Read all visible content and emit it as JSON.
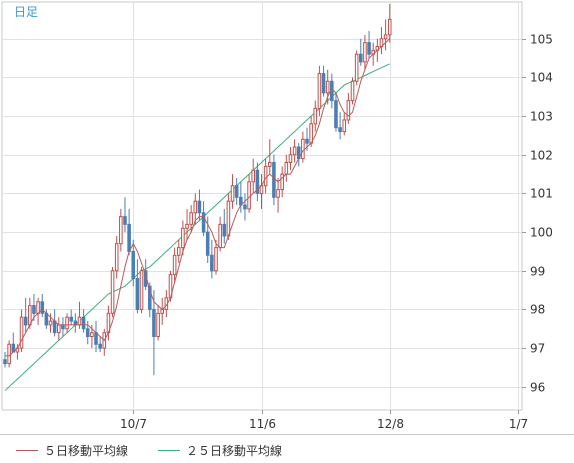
{
  "chart_data": {
    "type": "candlestick",
    "period_label": "日足",
    "ylim": [
      95.4,
      105.95
    ],
    "yticks": [
      96,
      97,
      98,
      99,
      100,
      101,
      102,
      103,
      104,
      105
    ],
    "xticks": [
      {
        "label": "10/7",
        "index": 31
      },
      {
        "label": "11/6",
        "index": 62
      },
      {
        "label": "12/8",
        "index": 93
      },
      {
        "label": "1/7",
        "index": 124
      }
    ],
    "legend": [
      {
        "name": "５日移動平均線",
        "color": "#b85a5a"
      },
      {
        "name": "２５日移動平均線",
        "color": "#3cae7c"
      }
    ],
    "colors": {
      "up": "#c0504d",
      "down": "#4a7fb5",
      "ma5": "#b85a5a",
      "ma25": "#3cae7c",
      "grid": "#e2e2e2",
      "axis": "#c8c8c8"
    },
    "candles": [
      [
        96.7,
        96.9,
        96.5,
        96.6
      ],
      [
        96.6,
        97.2,
        96.5,
        97.1
      ],
      [
        97.1,
        97.4,
        96.9,
        96.9
      ],
      [
        96.9,
        97.1,
        96.7,
        97.0
      ],
      [
        97.0,
        98.0,
        96.9,
        97.8
      ],
      [
        97.8,
        98.3,
        97.4,
        97.6
      ],
      [
        97.6,
        98.3,
        97.5,
        98.1
      ],
      [
        98.1,
        98.4,
        97.7,
        97.9
      ],
      [
        97.9,
        98.3,
        97.6,
        98.2
      ],
      [
        98.2,
        98.4,
        97.8,
        97.9
      ],
      [
        97.9,
        98.0,
        97.5,
        97.6
      ],
      [
        97.6,
        97.9,
        97.4,
        97.7
      ],
      [
        97.7,
        98.0,
        97.3,
        97.4
      ],
      [
        97.4,
        97.8,
        97.2,
        97.6
      ],
      [
        97.6,
        97.8,
        97.3,
        97.5
      ],
      [
        97.5,
        97.9,
        97.4,
        97.8
      ],
      [
        97.8,
        98.0,
        97.6,
        97.7
      ],
      [
        97.7,
        97.9,
        97.4,
        97.6
      ],
      [
        97.6,
        98.2,
        97.5,
        97.8
      ],
      [
        97.8,
        98.0,
        97.4,
        97.5
      ],
      [
        97.5,
        97.7,
        97.1,
        97.3
      ],
      [
        97.3,
        97.6,
        97.0,
        97.4
      ],
      [
        97.4,
        97.7,
        96.9,
        97.1
      ],
      [
        97.1,
        97.3,
        96.9,
        97.0
      ],
      [
        97.0,
        97.5,
        96.8,
        97.4
      ],
      [
        97.4,
        98.1,
        97.2,
        97.9
      ],
      [
        97.9,
        99.1,
        97.8,
        99.0
      ],
      [
        99.0,
        99.9,
        98.8,
        99.7
      ],
      [
        99.7,
        100.6,
        99.5,
        100.4
      ],
      [
        100.4,
        100.9,
        100.0,
        100.2
      ],
      [
        100.2,
        100.6,
        99.4,
        99.5
      ],
      [
        99.5,
        99.8,
        98.6,
        98.8
      ],
      [
        98.8,
        99.3,
        97.9,
        98.0
      ],
      [
        98.0,
        99.1,
        97.9,
        99.0
      ],
      [
        99.0,
        99.3,
        98.5,
        98.6
      ],
      [
        98.6,
        98.7,
        97.8,
        98.0
      ],
      [
        98.0,
        98.5,
        96.3,
        97.3
      ],
      [
        97.3,
        98.1,
        97.2,
        97.9
      ],
      [
        97.9,
        98.3,
        97.6,
        98.0
      ],
      [
        98.0,
        98.5,
        97.8,
        98.3
      ],
      [
        98.3,
        99.0,
        98.2,
        98.9
      ],
      [
        98.9,
        99.6,
        98.7,
        99.4
      ],
      [
        99.4,
        99.8,
        99.2,
        99.6
      ],
      [
        99.6,
        100.3,
        99.4,
        100.1
      ],
      [
        100.1,
        100.6,
        99.8,
        100.2
      ],
      [
        100.2,
        100.7,
        100.0,
        100.5
      ],
      [
        100.5,
        101.0,
        100.2,
        100.8
      ],
      [
        100.8,
        101.1,
        100.3,
        100.5
      ],
      [
        100.5,
        100.8,
        99.9,
        100.0
      ],
      [
        100.0,
        100.4,
        99.2,
        99.4
      ],
      [
        99.4,
        99.8,
        98.8,
        99.0
      ],
      [
        99.0,
        99.8,
        98.9,
        99.6
      ],
      [
        99.6,
        100.4,
        99.5,
        100.2
      ],
      [
        100.2,
        100.6,
        99.7,
        99.9
      ],
      [
        99.9,
        101.0,
        99.8,
        100.8
      ],
      [
        100.8,
        101.5,
        100.6,
        101.2
      ],
      [
        101.2,
        101.4,
        100.7,
        100.9
      ],
      [
        100.9,
        101.3,
        100.5,
        100.7
      ],
      [
        100.7,
        101.0,
        100.3,
        100.6
      ],
      [
        100.6,
        101.5,
        100.5,
        101.3
      ],
      [
        101.3,
        101.9,
        101.0,
        101.6
      ],
      [
        101.6,
        101.8,
        100.8,
        101.0
      ],
      [
        101.0,
        101.5,
        100.6,
        101.2
      ],
      [
        101.2,
        101.9,
        101.0,
        101.7
      ],
      [
        101.7,
        102.4,
        101.5,
        101.8
      ],
      [
        101.8,
        102.0,
        100.7,
        100.9
      ],
      [
        100.9,
        101.4,
        100.5,
        101.1
      ],
      [
        101.1,
        101.7,
        100.9,
        101.5
      ],
      [
        101.5,
        102.0,
        101.3,
        101.8
      ],
      [
        101.8,
        102.2,
        101.6,
        102.0
      ],
      [
        102.0,
        102.4,
        101.8,
        102.2
      ],
      [
        102.2,
        102.3,
        101.7,
        101.9
      ],
      [
        101.9,
        102.6,
        101.8,
        102.4
      ],
      [
        102.4,
        102.7,
        102.1,
        102.3
      ],
      [
        102.3,
        103.0,
        102.2,
        102.8
      ],
      [
        102.8,
        103.4,
        102.6,
        103.2
      ],
      [
        103.2,
        104.3,
        103.0,
        104.1
      ],
      [
        104.1,
        104.3,
        103.5,
        103.6
      ],
      [
        103.6,
        104.2,
        103.3,
        103.9
      ],
      [
        103.9,
        104.1,
        103.2,
        103.4
      ],
      [
        103.4,
        103.6,
        102.6,
        102.7
      ],
      [
        102.7,
        103.1,
        102.4,
        102.6
      ],
      [
        102.6,
        103.1,
        102.5,
        102.9
      ],
      [
        102.9,
        103.6,
        102.8,
        103.4
      ],
      [
        103.4,
        104.0,
        103.3,
        103.9
      ],
      [
        103.9,
        104.7,
        103.8,
        104.6
      ],
      [
        104.6,
        105.0,
        104.3,
        104.4
      ],
      [
        104.4,
        105.1,
        104.2,
        104.9
      ],
      [
        104.9,
        105.2,
        104.5,
        104.6
      ],
      [
        104.6,
        104.9,
        104.3,
        104.7
      ],
      [
        104.7,
        105.0,
        104.4,
        104.8
      ],
      [
        104.8,
        105.3,
        104.6,
        105.0
      ],
      [
        105.0,
        105.5,
        104.7,
        105.1
      ],
      [
        105.1,
        105.9,
        104.9,
        105.5
      ]
    ],
    "ma5": [
      96.8,
      96.8,
      96.9,
      97.0,
      97.2,
      97.4,
      97.6,
      97.8,
      97.9,
      98.0,
      97.9,
      97.8,
      97.7,
      97.6,
      97.6,
      97.6,
      97.6,
      97.6,
      97.6,
      97.6,
      97.6,
      97.5,
      97.4,
      97.3,
      97.2,
      97.4,
      97.7,
      98.1,
      98.6,
      99.1,
      99.5,
      99.7,
      99.5,
      99.2,
      98.9,
      98.5,
      98.2,
      98.1,
      98.0,
      98.1,
      98.3,
      98.7,
      99.1,
      99.5,
      99.8,
      100.0,
      100.3,
      100.4,
      100.4,
      100.2,
      100.0,
      99.7,
      99.6,
      99.6,
      99.9,
      100.2,
      100.5,
      100.7,
      100.8,
      100.9,
      101.0,
      101.1,
      101.2,
      101.4,
      101.5,
      101.4,
      101.3,
      101.4,
      101.5,
      101.5,
      101.7,
      101.9,
      102.1,
      102.2,
      102.3,
      102.5,
      102.8,
      103.2,
      103.5,
      103.7,
      103.6,
      103.3,
      103.1,
      103.0,
      103.1,
      103.5,
      103.9,
      104.2,
      104.5,
      104.6,
      104.7,
      104.8,
      104.9,
      105.0
    ],
    "ma25": [
      95.9,
      96.0,
      96.1,
      96.2,
      96.3,
      96.4,
      96.5,
      96.6,
      96.7,
      96.8,
      96.9,
      97.0,
      97.1,
      97.2,
      97.3,
      97.4,
      97.5,
      97.6,
      97.7,
      97.8,
      97.9,
      98.0,
      98.1,
      98.2,
      98.3,
      98.4,
      98.45,
      98.5,
      98.55,
      98.6,
      98.7,
      98.8,
      98.9,
      99.0,
      99.05,
      99.1,
      99.2,
      99.3,
      99.4,
      99.5,
      99.6,
      99.7,
      99.8,
      99.9,
      100.0,
      100.1,
      100.2,
      100.3,
      100.4,
      100.5,
      100.6,
      100.7,
      100.8,
      100.9,
      101.0,
      101.1,
      101.2,
      101.3,
      101.4,
      101.5,
      101.6,
      101.7,
      101.8,
      101.9,
      102.0,
      102.1,
      102.2,
      102.3,
      102.4,
      102.5,
      102.6,
      102.7,
      102.8,
      102.9,
      103.0,
      103.1,
      103.2,
      103.3,
      103.4,
      103.5,
      103.6,
      103.7,
      103.8,
      103.85,
      103.9,
      103.95,
      104.0,
      104.05,
      104.1,
      104.15,
      104.2,
      104.25,
      104.3,
      104.35
    ]
  }
}
